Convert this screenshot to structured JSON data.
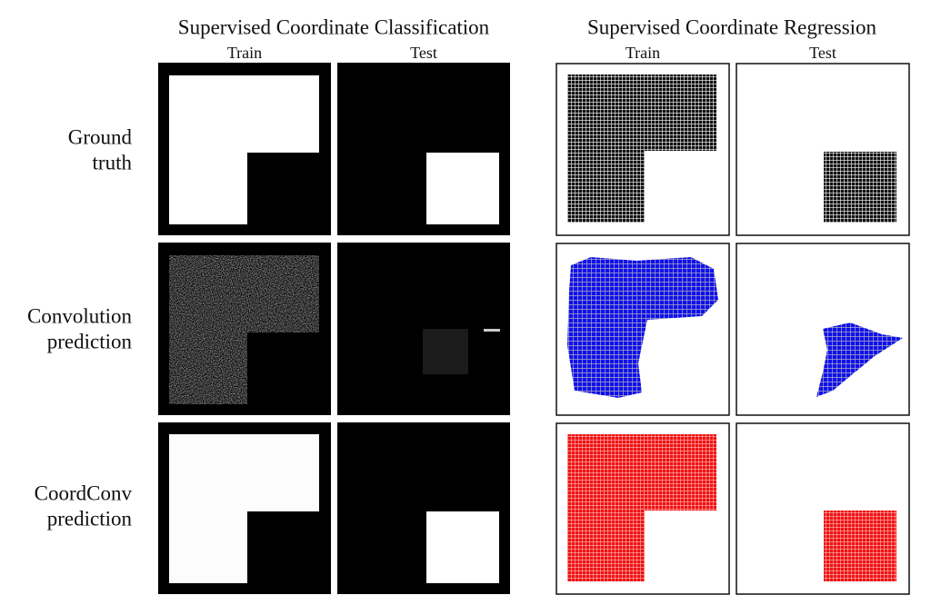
{
  "header": {
    "left_title": "Supervised Coordinate Classification",
    "right_title": "Supervised Coordinate Regression",
    "left_columns": [
      "Train",
      "Test"
    ],
    "right_columns": [
      "Train",
      "Test"
    ]
  },
  "rows": [
    {
      "label_lines": [
        "Ground",
        "truth"
      ]
    },
    {
      "label_lines": [
        "Convolution",
        "prediction"
      ]
    },
    {
      "label_lines": [
        "CoordConv",
        "prediction"
      ]
    }
  ]
}
